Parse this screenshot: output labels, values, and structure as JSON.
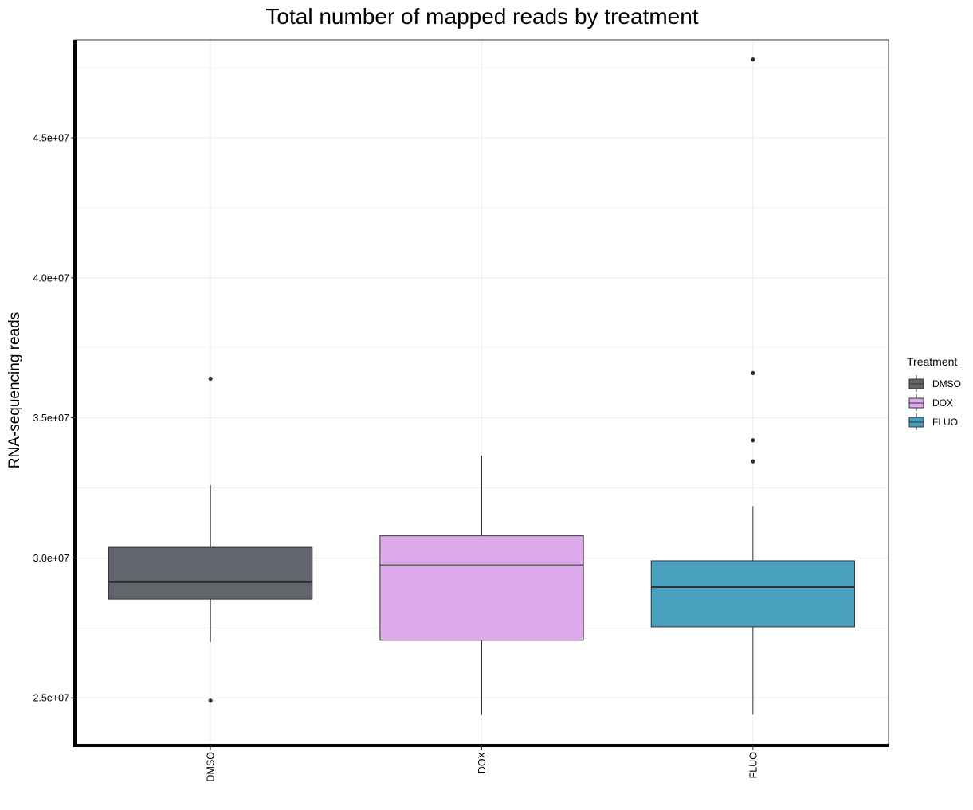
{
  "chart_data": {
    "type": "box",
    "title": "Total number of mapped reads by treatment",
    "xlabel": "",
    "ylabel": "RNA-sequencing reads",
    "ylim": [
      23300000,
      48500000
    ],
    "y_ticks": [
      25000000,
      30000000,
      35000000,
      40000000,
      45000000
    ],
    "y_tick_labels": [
      "2.5e+07",
      "3.0e+07",
      "3.5e+07",
      "4.0e+07",
      "4.5e+07"
    ],
    "grid": true,
    "legend": {
      "title": "Treatment",
      "position": "right",
      "entries": [
        "DMSO",
        "DOX",
        "FLUO"
      ]
    },
    "categories": [
      "DMSO",
      "DOX",
      "FLUO"
    ],
    "boxes": [
      {
        "category": "DMSO",
        "color": "#63656c",
        "min": 27000000,
        "q1": 28530000,
        "median": 29130000,
        "q3": 30380000,
        "max": 32600000,
        "outliers": [
          36400000,
          24900000
        ]
      },
      {
        "category": "DOX",
        "color": "#ddabeb",
        "min": 24400000,
        "q1": 27060000,
        "median": 29740000,
        "q3": 30790000,
        "max": 33650000,
        "outliers": []
      },
      {
        "category": "FLUO",
        "color": "#49a0be",
        "min": 24400000,
        "q1": 27540000,
        "median": 28960000,
        "q3": 29900000,
        "max": 31850000,
        "outliers": [
          47800000,
          36600000,
          34200000,
          33450000
        ]
      }
    ]
  }
}
